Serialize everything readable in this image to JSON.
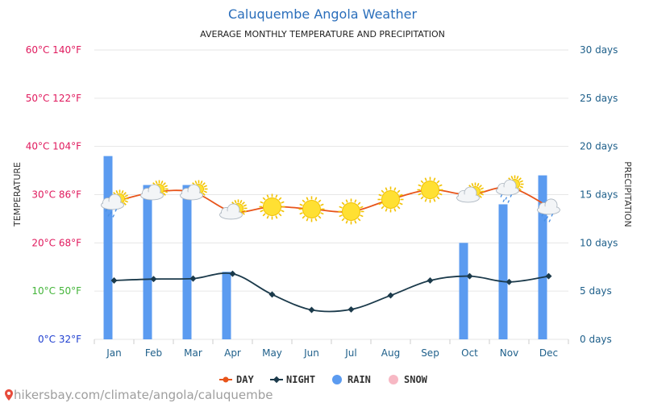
{
  "header": {
    "title": "Caluquembe Angola Weather",
    "subtitle": "AVERAGE MONTHLY TEMPERATURE AND PRECIPITATION"
  },
  "footer": {
    "link_text": "hikersbay.com/climate/angola/caluquembe",
    "icon": "map-pin-icon"
  },
  "colors": {
    "day": "#e8541a",
    "night": "#1b3a4b",
    "rain": "#5b9bf0",
    "snow": "#f7b8c4",
    "title": "#2a6ebb",
    "right_axis": "#1e5f8a",
    "grid": "#e6e6e6"
  },
  "chart_data": {
    "type": "line",
    "title": "Caluquembe Angola Weather",
    "subtitle": "AVERAGE MONTHLY TEMPERATURE AND PRECIPITATION",
    "categories": [
      "Jan",
      "Feb",
      "Mar",
      "Apr",
      "May",
      "Jun",
      "Jul",
      "Aug",
      "Sep",
      "Oct",
      "Nov",
      "Dec"
    ],
    "y_left": {
      "label": "TEMPERATURE",
      "range_c": [
        0,
        60
      ],
      "ticks": [
        {
          "c": 0,
          "text": "0°C 32°F",
          "color": "#1f3fd0"
        },
        {
          "c": 10,
          "text": "10°C 50°F",
          "color": "#44b53a"
        },
        {
          "c": 20,
          "text": "20°C 68°F",
          "color": "#e0195d"
        },
        {
          "c": 30,
          "text": "30°C 86°F",
          "color": "#e0195d"
        },
        {
          "c": 40,
          "text": "40°C 104°F",
          "color": "#e0195d"
        },
        {
          "c": 50,
          "text": "50°C 122°F",
          "color": "#e0195d"
        },
        {
          "c": 60,
          "text": "60°C 140°F",
          "color": "#e0195d"
        }
      ]
    },
    "y_right": {
      "label": "PRECIPITATION",
      "range_days": [
        0,
        30
      ],
      "ticks": [
        {
          "d": 0,
          "text": "0 days"
        },
        {
          "d": 5,
          "text": "5 days"
        },
        {
          "d": 10,
          "text": "10 days"
        },
        {
          "d": 15,
          "text": "15 days"
        },
        {
          "d": 20,
          "text": "20 days"
        },
        {
          "d": 25,
          "text": "25 days"
        },
        {
          "d": 30,
          "text": "30 days"
        }
      ]
    },
    "series": [
      {
        "name": "DAY",
        "type": "line",
        "unit": "°C",
        "values": [
          28.5,
          30.5,
          30.5,
          26.5,
          27.5,
          27,
          26.5,
          29,
          31,
          30,
          31.5,
          27.5
        ]
      },
      {
        "name": "NIGHT",
        "type": "line",
        "unit": "°C",
        "values": [
          12.2,
          12.5,
          12.6,
          13.6,
          9.3,
          6.1,
          6.2,
          9.1,
          12.2,
          13.1,
          11.9,
          13.1
        ]
      },
      {
        "name": "RAIN",
        "type": "bar",
        "unit": "days",
        "values": [
          19,
          16,
          16,
          7,
          0,
          0,
          0,
          0,
          0,
          10,
          14,
          17
        ]
      },
      {
        "name": "SNOW",
        "type": "bar",
        "unit": "days",
        "values": [
          0,
          0,
          0,
          0,
          0,
          0,
          0,
          0,
          0,
          0,
          0,
          0
        ]
      }
    ],
    "weather_icons": [
      "cloud-sun-rain-icon",
      "cloud-sun-icon",
      "cloud-sun-icon",
      "cloud-sun-icon",
      "sun-icon",
      "sun-icon",
      "sun-icon",
      "sun-icon",
      "sun-icon",
      "cloud-sun-icon",
      "cloud-sun-rain-icon",
      "cloud-rain-icon"
    ],
    "legend": [
      "DAY",
      "NIGHT",
      "RAIN",
      "SNOW"
    ],
    "legend_placement": "bottom-center",
    "grid": true
  }
}
